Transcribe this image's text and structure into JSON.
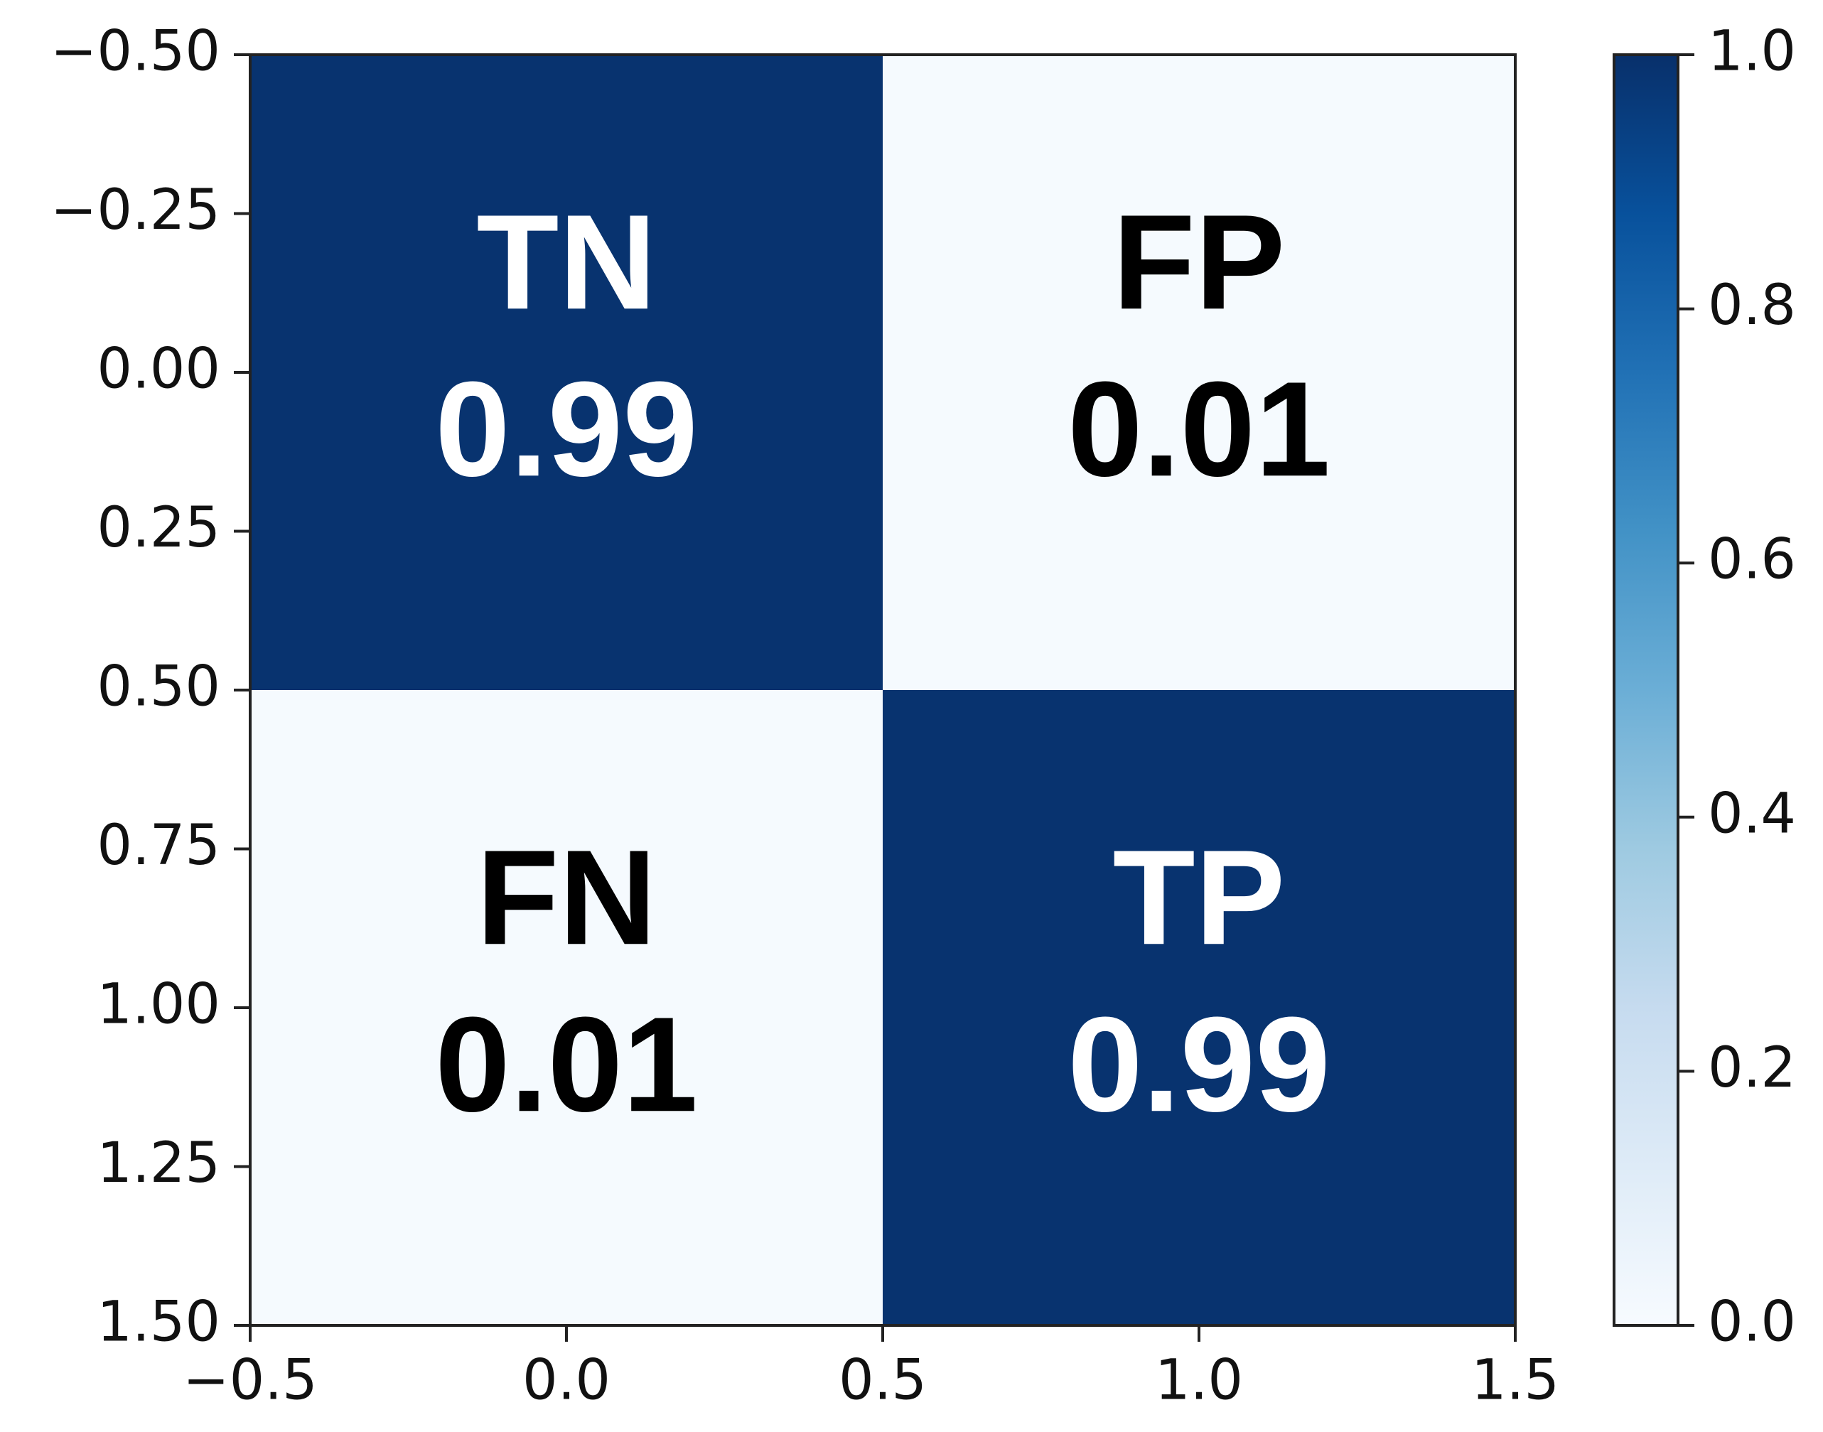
{
  "chart_data": {
    "type": "heatmap",
    "x": [
      0,
      1
    ],
    "y": [
      0,
      1
    ],
    "values": [
      [
        0.99,
        0.01
      ],
      [
        0.01,
        0.99
      ]
    ],
    "cell_labels": [
      [
        "TN",
        "FP"
      ],
      [
        "FN",
        "TP"
      ]
    ],
    "xlim": [
      -0.5,
      1.5
    ],
    "ylim": [
      -0.5,
      1.5
    ],
    "y_inverted": true,
    "xticks": [
      {
        "value": -0.5,
        "label": "−0.5"
      },
      {
        "value": 0,
        "label": "0.0"
      },
      {
        "value": 0.5,
        "label": "0.5"
      },
      {
        "value": 1,
        "label": "1.0"
      },
      {
        "value": 1.5,
        "label": "1.5"
      }
    ],
    "yticks": [
      {
        "value": -0.5,
        "label": "−0.50"
      },
      {
        "value": -0.25,
        "label": "−0.25"
      },
      {
        "value": 0,
        "label": "0.00"
      },
      0.25,
      {
        "value": 0.5,
        "label": "0.50"
      },
      0.75,
      {
        "value": 1,
        "label": "1.00"
      },
      1.25,
      {
        "value": 1.5,
        "label": "1.50"
      }
    ],
    "colorbar_lim": [
      0,
      1
    ],
    "colorbar_ticks": [
      {
        "value": 0,
        "label": "0.0"
      },
      0.2,
      0.4,
      0.6,
      0.8,
      {
        "value": 1,
        "label": "1.0"
      }
    ],
    "colormap": [
      "#f7fbff",
      "#deebf7",
      "#c6dbef",
      "#9ecae1",
      "#6baed6",
      "#4292c6",
      "#2171b5",
      "#08519c",
      "#08306b"
    ]
  }
}
